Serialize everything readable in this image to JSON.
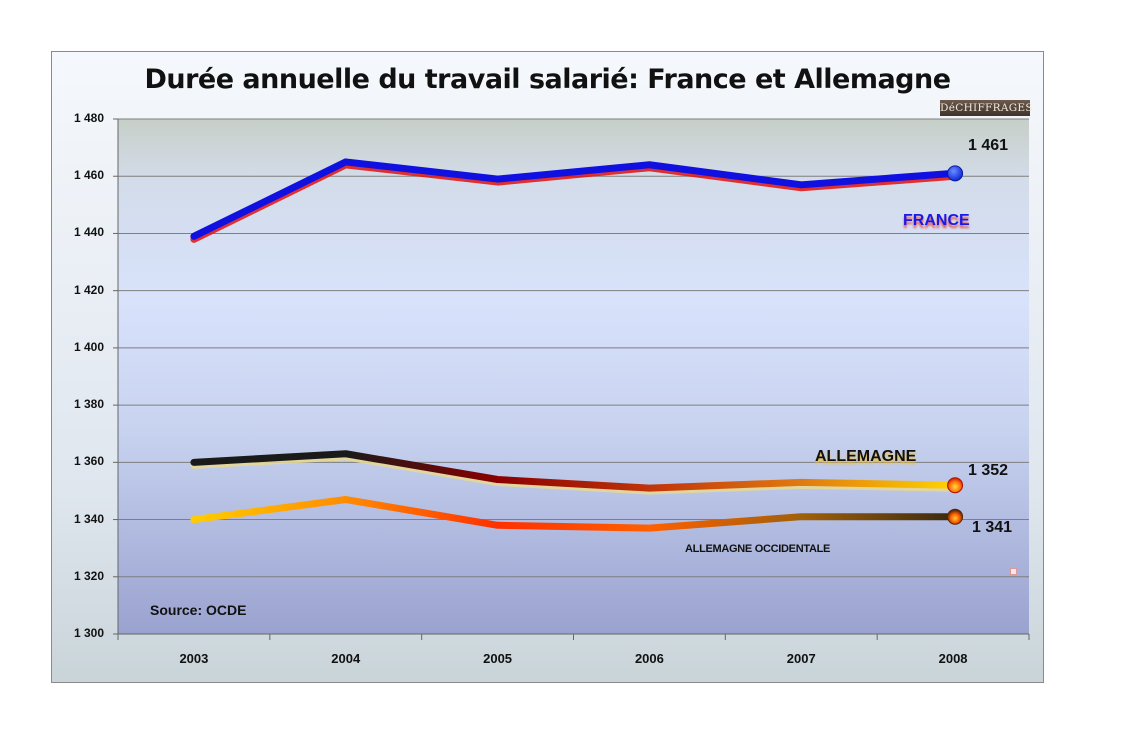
{
  "chart_data": {
    "type": "line",
    "title": "Durée annuelle du travail salarié: France et Allemagne",
    "categories": [
      "2003",
      "2004",
      "2005",
      "2006",
      "2007",
      "2008"
    ],
    "ylim": [
      1300,
      1480
    ],
    "yticks": [
      1300,
      1320,
      1340,
      1360,
      1380,
      1400,
      1420,
      1440,
      1460,
      1480
    ],
    "ytick_labels": [
      "1 300",
      "1 320",
      "1 340",
      "1 360",
      "1 380",
      "1 400",
      "1 420",
      "1 440",
      "1 460",
      "1 480"
    ],
    "grid": true,
    "series": [
      {
        "name": "FRANCE",
        "values": [
          1439,
          1465,
          1459,
          1464,
          1457,
          1461
        ],
        "color": "#1010e0",
        "shadow_color": "#e01010",
        "end_label": "1 461"
      },
      {
        "name": "ALLEMAGNE",
        "values": [
          1360,
          1363,
          1354,
          1351,
          1353,
          1352
        ],
        "colors": [
          "#1a1a1a",
          "#1a1a1a",
          "#8b0000",
          "#c0340a",
          "#e07a10",
          "#ffd200"
        ],
        "shadow_color": "#e8d890",
        "end_label": "1 352"
      },
      {
        "name": "ALLEMAGNE OCCIDENTALE",
        "values": [
          1340,
          1347,
          1338,
          1337,
          1341,
          1341
        ],
        "colors": [
          "#ffcc00",
          "#ff8c00",
          "#ff3000",
          "#ff6000",
          "#a0600a",
          "#3a2a10"
        ],
        "end_label": "1 341"
      }
    ],
    "source": "Source: OCDE",
    "logo_text": "DéCHIFFRAGES"
  }
}
